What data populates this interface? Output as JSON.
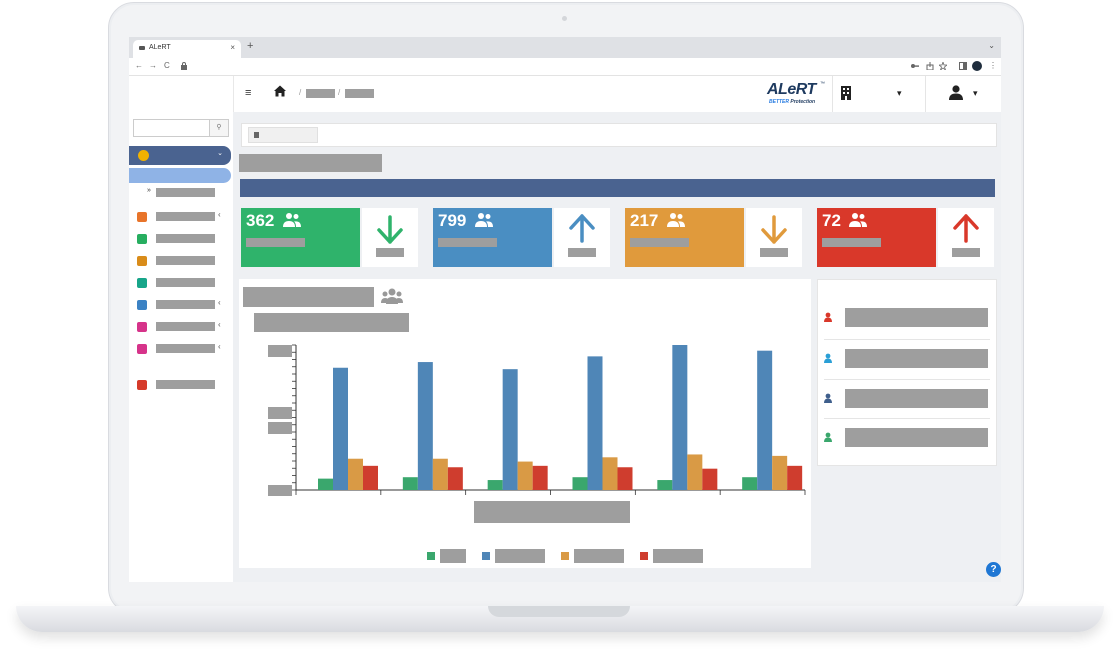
{
  "browser": {
    "tab_title": "ALeRT",
    "tab_close": "×",
    "new_tab": "+",
    "tab_menu": "⌄",
    "nav_back": "←",
    "nav_forward": "→",
    "nav_reload": "C",
    "lock": "🔒",
    "toolbar_icons": [
      "key-icon",
      "share-icon",
      "star-icon",
      "sidebar-icon",
      "profile-icon",
      "menu-icon"
    ],
    "menu_glyph": "⋮"
  },
  "header": {
    "menu_glyph": "≡",
    "breadcrumb_sep": "/",
    "brand_main": "ALeRT",
    "brand_tag_bold": "BETTER",
    "brand_tag": " Protection",
    "brand_tm": "™",
    "caret": "▾"
  },
  "sidebar": {
    "search_icon": "⚲",
    "active_chev": "⌄",
    "sub_marker": "»",
    "items": [
      {
        "icon": "contact-card-icon",
        "color": "#e8742a",
        "arrow": "‹"
      },
      {
        "icon": "chat-bubbles-icon",
        "color": "#27ae60",
        "arrow": ""
      },
      {
        "icon": "address-book-icon",
        "color": "#d98c1a",
        "arrow": ""
      },
      {
        "icon": "user-share-icon",
        "color": "#17a589",
        "arrow": ""
      },
      {
        "icon": "users-icon",
        "color": "#3b82c4",
        "arrow": "‹"
      },
      {
        "icon": "settings-gear-icon",
        "color": "#d6338a",
        "arrow": "‹"
      },
      {
        "icon": "document-icon",
        "color": "#d6338a",
        "arrow": "‹"
      },
      {
        "icon": "logout-icon",
        "color": "#d63a2a",
        "arrow": ""
      }
    ]
  },
  "stats": [
    {
      "value": "362",
      "color": "#2fb36b",
      "arrow_dir": "down",
      "arrow_color": "#2fb36b"
    },
    {
      "value": "799",
      "color": "#4a8ec2",
      "arrow_dir": "up",
      "arrow_color": "#4a8ec2"
    },
    {
      "value": "217",
      "color": "#e09a3c",
      "arrow_dir": "down",
      "arrow_color": "#e09a3c"
    },
    {
      "value": "72",
      "color": "#d9382a",
      "arrow_dir": "up",
      "arrow_color": "#d9382a"
    }
  ],
  "chart_data": {
    "type": "bar",
    "categories": [
      "",
      "",
      "",
      "",
      "",
      ""
    ],
    "series": [
      {
        "values": [
          8,
          9,
          7,
          9,
          7,
          9
        ],
        "color": "#3aa76d"
      },
      {
        "values": [
          86,
          90,
          85,
          94,
          102,
          98
        ],
        "color": "#4f86b7"
      },
      {
        "values": [
          22,
          22,
          20,
          23,
          25,
          24
        ],
        "color": "#d99a45"
      },
      {
        "values": [
          17,
          16,
          17,
          16,
          15,
          17
        ],
        "color": "#cf3d2e"
      }
    ],
    "ylim": [
      0,
      102
    ],
    "legend": "bottom-center"
  },
  "side_list": [
    {
      "icon": "user-plus-icon",
      "color": "#d9382a"
    },
    {
      "icon": "user-cog-icon",
      "color": "#2a9fd6"
    },
    {
      "icon": "users-group-icon",
      "color": "#3f5f8c"
    },
    {
      "icon": "user-slash-icon",
      "color": "#3aa76d"
    }
  ],
  "help": "?"
}
